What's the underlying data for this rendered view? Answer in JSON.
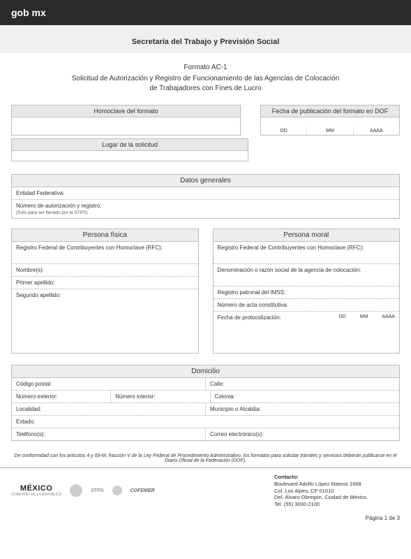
{
  "topbar": {
    "brand": "gob mx"
  },
  "header": {
    "ministry": "Secretaría del Trabajo y Previsión Social"
  },
  "title": {
    "format": "Formato AC-1",
    "line1": "Solicitud de Autorización y Registro de Funcionamiento de las Agencias de Colocación",
    "line2": "de Trabajadores con Fines de Lucro"
  },
  "homoclave": {
    "label": "Homoclave del formato"
  },
  "dof": {
    "label": "Fecha de publicación del formato en DOF",
    "dd": "DD",
    "mm": "MM",
    "aaaa": "AAAA"
  },
  "lugar": {
    "label": "Lugar de la solicitud"
  },
  "datos_generales": {
    "heading": "Datos generales",
    "entidad": "Entidad Federativa:",
    "num_aut": "Número de autorización y registro:",
    "note": "(Solo para ser llenado por la STPS)"
  },
  "persona_fisica": {
    "heading": "Persona física",
    "rfc": "Registro Federal de Contribuyentes con Homoclave (RFC):",
    "nombres": "Nombre(s):",
    "primer_apellido": "Primer apellido:",
    "segundo_apellido": "Segundo apellido:"
  },
  "persona_moral": {
    "heading": "Persona moral",
    "rfc": "Registro Federal de Contribuyentes con Homoclave (RFC):",
    "denominacion": "Denominación o razón social de la agencia de colocación:",
    "imss": "Registro patronal del IMSS:",
    "acta": "Número de acta constitutiva:",
    "protocolizacion": "Fecha de protocolización:",
    "dd": "DD",
    "mm": "MM",
    "aaaa": "AAAA"
  },
  "domicilio": {
    "heading": "Domicilio",
    "cp": "Código postal:",
    "calle": "Calle:",
    "num_ext": "Número exterior:",
    "num_int": "Número interior:",
    "colonia": "Colonia:",
    "localidad": "Localidad:",
    "municipio": "Municipio o Alcaldía:",
    "estado": "Estado:",
    "telefonos": "Teléfono(s):",
    "correo": "Correo electrónico(s):"
  },
  "legal": "De conformidad con los artículos 4 y 69-M, fracción V de la Ley Federal de Procedimiento Administrativo, los formatos para solicitar trámites y servicios deberán publicarse en el Diario Oficial de la Federación (DOF).",
  "footer": {
    "mexico": "MÉXICO",
    "mexico_sub": "GOBIERNO DE LA REPÚBLICA",
    "stps": "STPS",
    "cofemer": "COFEMER",
    "contact_heading": "Contacto:",
    "addr1": "Boulevard Adolfo López Mateos 1968",
    "addr2": "Col. Los Alpes, CP 01010",
    "addr3": "Del. Álvaro Obregón, Ciudad de México.",
    "tel": "Tel. (55) 3000-2100"
  },
  "page": "Página 1 de 3"
}
